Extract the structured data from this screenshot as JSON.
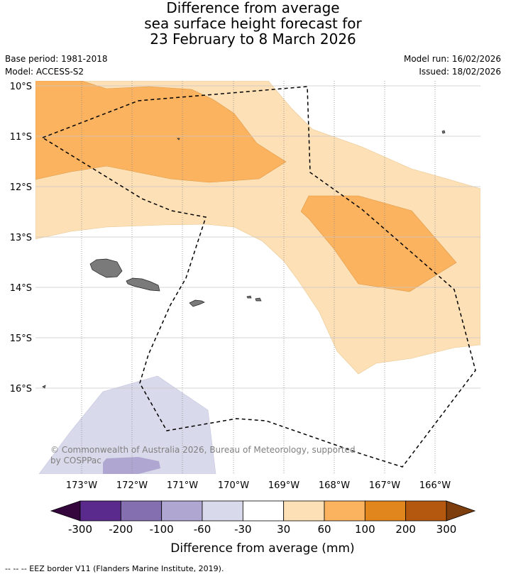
{
  "title": {
    "line1": "Difference from average",
    "line2": "sea surface height forecast for",
    "line3": "23 February to 8 March 2026"
  },
  "meta": {
    "base_period": "Base period: 1981-2018",
    "model": "Model: ACCESS-S2",
    "model_run": "Model run: 16/02/2026",
    "issued": "Issued: 18/02/2026"
  },
  "map": {
    "lat_labels": [
      "10°S",
      "11°S",
      "12°S",
      "13°S",
      "14°S",
      "15°S",
      "16°S"
    ],
    "lon_labels": [
      "173°W",
      "172°W",
      "171°W",
      "170°W",
      "169°W",
      "168°W",
      "167°W",
      "166°W"
    ],
    "copyright_line1": "© Commonwealth of Australia 2026, Bureau of Meteorology, supported",
    "copyright_line2": "by COSPPac",
    "land_color": "#7a7a7a",
    "eez_style": "dashed"
  },
  "legend": {
    "title": "Difference from average (mm)",
    "ticks": [
      "-300",
      "-200",
      "-100",
      "-60",
      "-30",
      "30",
      "60",
      "100",
      "200",
      "300"
    ],
    "colors": [
      "#35063d",
      "#5b2a8d",
      "#8470b0",
      "#afa6d1",
      "#d8d9ea",
      "#ffffff",
      "#fde0b5",
      "#fbb35f",
      "#e1861c",
      "#b5580f",
      "#7d3d0c"
    ]
  },
  "footer": {
    "eez_note": "--  --  -- EEZ border V11 (Flanders Marine Institute, 2019)."
  }
}
